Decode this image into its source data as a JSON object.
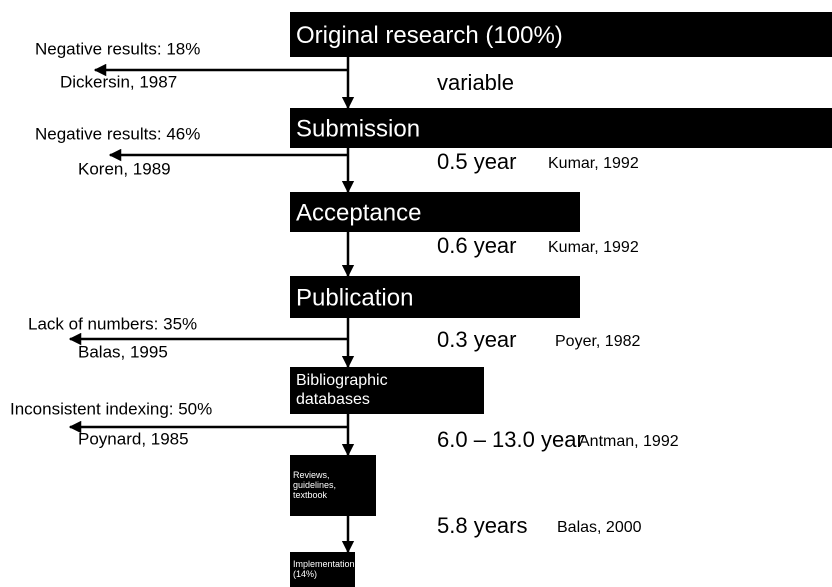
{
  "stages": [
    {
      "lines": [
        "Original research (100%)"
      ]
    },
    {
      "lines": [
        "Submission"
      ]
    },
    {
      "lines": [
        "Acceptance"
      ]
    },
    {
      "lines": [
        "Publication"
      ]
    },
    {
      "lines": [
        "Bibliographic",
        "databases"
      ]
    },
    {
      "lines": [
        "Reviews,",
        "guidelines,",
        "textbook"
      ]
    },
    {
      "lines": [
        "Implementation",
        "(14%)"
      ]
    }
  ],
  "losses": [
    {
      "label": "Negative results: 18%",
      "citation": "Dickersin, 1987"
    },
    {
      "label": "Negative results: 46%",
      "citation": "Koren, 1989"
    },
    {
      "label": "Lack of numbers: 35%",
      "citation": "Balas, 1995"
    },
    {
      "label": "Inconsistent indexing: 50%",
      "citation": "Poynard, 1985"
    }
  ],
  "intervals": [
    {
      "time": "variable"
    },
    {
      "time": "0.5 year",
      "citation": "Kumar, 1992"
    },
    {
      "time": "0.6 year",
      "citation": "Kumar, 1992"
    },
    {
      "time": "0.3 year",
      "citation": "Poyer, 1982"
    },
    {
      "time": "6.0 – 13.0 year",
      "citation": "Antman, 1992"
    },
    {
      "time": "5.8 years",
      "citation": "Balas, 2000"
    }
  ]
}
